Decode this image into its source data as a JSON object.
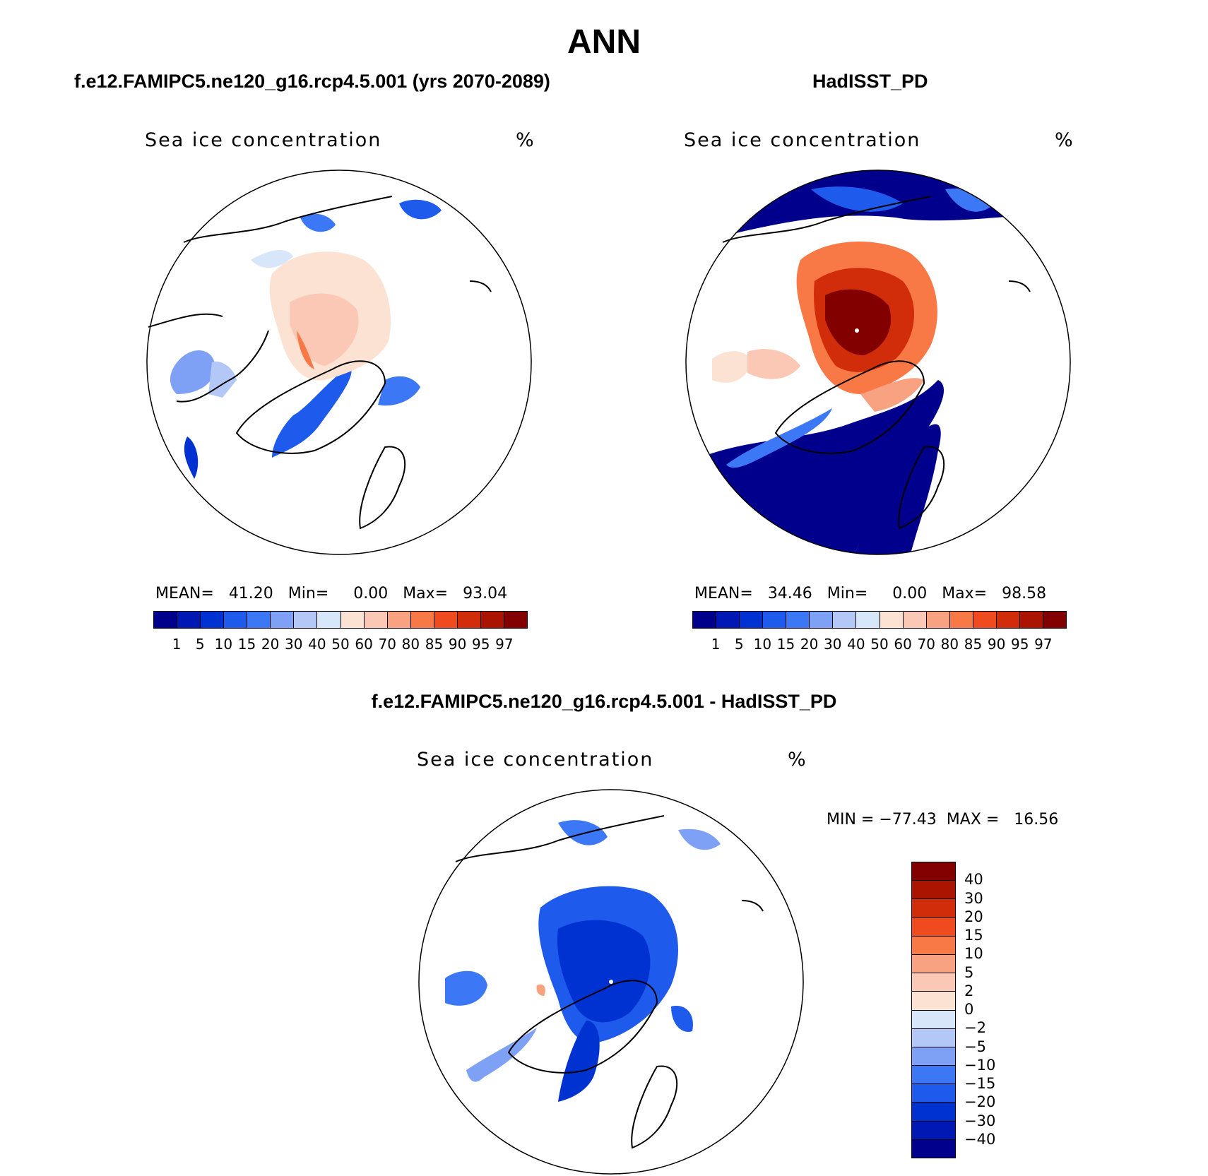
{
  "title": "ANN",
  "panels": {
    "left": {
      "case_title": "f.e12.FAMIPC5.ne120_g16.rcp4.5.001 (yrs 2070-2089)",
      "variable": "Sea ice concentration",
      "unit": "%",
      "stats": {
        "mean_label": "MEAN=",
        "mean": "41.20",
        "min_label": "Min=",
        "min": "0.00",
        "max_label": "Max=",
        "max": "93.04"
      }
    },
    "right": {
      "case_title": "HadISST_PD",
      "variable": "Sea ice concentration",
      "unit": "%",
      "stats": {
        "mean_label": "MEAN=",
        "mean": "34.46",
        "min_label": "Min=",
        "min": "0.00",
        "max_label": "Max=",
        "max": "98.58"
      }
    },
    "diff": {
      "case_title": "f.e12.FAMIPC5.ne120_g16.rcp4.5.001 - HadISST_PD",
      "variable": "Sea ice concentration",
      "unit": "%",
      "stats": {
        "min_label": "MIN =",
        "min": "−77.43",
        "max_label": "MAX =",
        "max": "16.56"
      }
    }
  },
  "colorbar_abs": {
    "ticks": [
      "1",
      "5",
      "10",
      "15",
      "20",
      "30",
      "40",
      "50",
      "60",
      "70",
      "80",
      "85",
      "90",
      "95",
      "97"
    ],
    "colors": [
      "#00008c",
      "#0019b4",
      "#0032d2",
      "#1e5aeb",
      "#3c78f5",
      "#7ea0f5",
      "#b4c8f8",
      "#d8e6fa",
      "#fbe2d2",
      "#fac8b4",
      "#f8a282",
      "#f87846",
      "#f04b1e",
      "#d22d0a",
      "#aa1400",
      "#820000"
    ]
  },
  "colorbar_diff": {
    "ticks": [
      "40",
      "30",
      "20",
      "15",
      "10",
      "5",
      "2",
      "0",
      "−2",
      "−5",
      "−10",
      "−15",
      "−20",
      "−30",
      "−40"
    ],
    "colors": [
      "#820000",
      "#aa1400",
      "#d22d0a",
      "#f04b1e",
      "#f87846",
      "#f8a282",
      "#fac8b4",
      "#fbe2d2",
      "#d8e6fa",
      "#b4c8f8",
      "#7ea0f5",
      "#3c78f5",
      "#1e5aeb",
      "#0032d2",
      "#0019b4",
      "#00008c"
    ]
  }
}
